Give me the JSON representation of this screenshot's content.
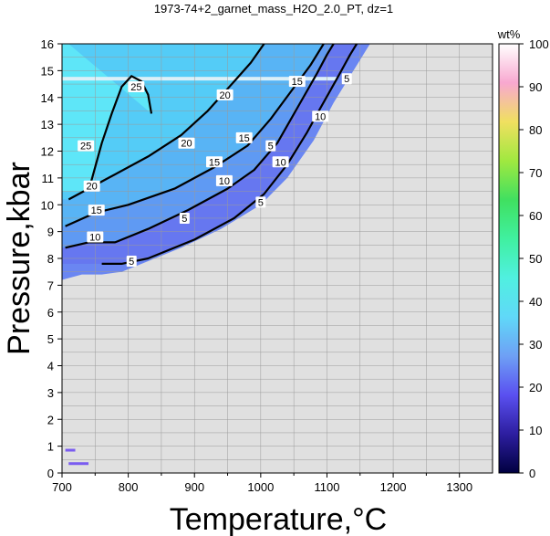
{
  "chart_data": {
    "type": "heatmap",
    "title": "1973-74+2_garnet_mass_H2O_2.0_PT, dz=1",
    "xlabel": "Temperature,°C",
    "ylabel": "Pressure,kbar",
    "xlim": [
      700,
      1350
    ],
    "ylim": [
      0,
      16
    ],
    "xticks": [
      700,
      800,
      900,
      1000,
      1100,
      1200,
      1300
    ],
    "yticks": [
      0,
      1,
      2,
      3,
      4,
      5,
      6,
      7,
      8,
      9,
      10,
      11,
      12,
      13,
      14,
      15,
      16
    ],
    "grid": true,
    "colorbar": {
      "label": "wt%",
      "range": [
        0,
        100
      ],
      "ticks": [
        0,
        10,
        20,
        30,
        40,
        50,
        60,
        70,
        80,
        90,
        100
      ],
      "colors": [
        "#000040",
        "#2d1ea0",
        "#5a50f0",
        "#6ea0f5",
        "#60d8f8",
        "#50f0e0",
        "#40f0a0",
        "#40e060",
        "#a0e840",
        "#f0e060",
        "#f8a8d0",
        "#ffffff"
      ]
    },
    "no_data_color": "#e0e0e0",
    "contours": [
      {
        "level": 5,
        "points": [
          [
            760,
            7.8
          ],
          [
            790,
            7.8
          ],
          [
            830,
            8.0
          ],
          [
            900,
            8.7
          ],
          [
            960,
            9.5
          ],
          [
            1005,
            10.4
          ],
          [
            1040,
            11.5
          ],
          [
            1070,
            12.7
          ],
          [
            1090,
            13.6
          ],
          [
            1115,
            14.7
          ],
          [
            1135,
            15.6
          ],
          [
            1145,
            16.0
          ]
        ]
      },
      {
        "level": 10,
        "points": [
          [
            705,
            8.4
          ],
          [
            740,
            8.6
          ],
          [
            780,
            8.6
          ],
          [
            830,
            9.1
          ],
          [
            890,
            9.8
          ],
          [
            950,
            10.6
          ],
          [
            990,
            11.3
          ],
          [
            1025,
            12.3
          ],
          [
            1055,
            13.6
          ],
          [
            1085,
            14.9
          ],
          [
            1100,
            15.6
          ],
          [
            1110,
            16.0
          ]
        ]
      },
      {
        "level": 15,
        "points": [
          [
            705,
            9.2
          ],
          [
            750,
            9.7
          ],
          [
            800,
            10.0
          ],
          [
            870,
            10.6
          ],
          [
            930,
            11.4
          ],
          [
            980,
            12.2
          ],
          [
            1015,
            13.2
          ],
          [
            1045,
            14.2
          ],
          [
            1075,
            15.2
          ],
          [
            1095,
            16.0
          ]
        ]
      },
      {
        "level": 20,
        "points": [
          [
            710,
            10.2
          ],
          [
            770,
            11.0
          ],
          [
            830,
            11.8
          ],
          [
            880,
            12.6
          ],
          [
            920,
            13.5
          ],
          [
            960,
            14.6
          ],
          [
            985,
            15.3
          ],
          [
            1005,
            16.0
          ]
        ]
      },
      {
        "level": 25,
        "points": [
          [
            740,
            10.5
          ],
          [
            760,
            12.3
          ],
          [
            775,
            13.4
          ],
          [
            790,
            14.4
          ],
          [
            805,
            14.8
          ],
          [
            820,
            14.6
          ],
          [
            830,
            14.1
          ],
          [
            835,
            13.4
          ]
        ]
      }
    ],
    "contour_labels": [
      {
        "text": "5",
        "t": 1000,
        "p": 10.1
      },
      {
        "text": "5",
        "t": 1015,
        "p": 12.2
      },
      {
        "text": "5",
        "t": 1130,
        "p": 14.7
      },
      {
        "text": "5",
        "t": 805,
        "p": 7.9
      },
      {
        "text": "5",
        "t": 885,
        "p": 9.5
      },
      {
        "text": "10",
        "t": 945,
        "p": 10.9
      },
      {
        "text": "10",
        "t": 1030,
        "p": 11.6
      },
      {
        "text": "10",
        "t": 1090,
        "p": 13.3
      },
      {
        "text": "10",
        "t": 750,
        "p": 8.8
      },
      {
        "text": "15",
        "t": 930,
        "p": 11.6
      },
      {
        "text": "15",
        "t": 975,
        "p": 12.5
      },
      {
        "text": "15",
        "t": 1055,
        "p": 14.6
      },
      {
        "text": "15",
        "t": 752,
        "p": 9.8
      },
      {
        "text": "20",
        "t": 745,
        "p": 10.7
      },
      {
        "text": "20",
        "t": 888,
        "p": 12.3
      },
      {
        "text": "20",
        "t": 946,
        "p": 14.1
      },
      {
        "text": "25",
        "t": 736,
        "p": 12.2
      },
      {
        "text": "25",
        "t": 812,
        "p": 14.4
      }
    ],
    "data_region": [
      [
        700,
        7.2
      ],
      [
        730,
        7.4
      ],
      [
        760,
        7.4
      ],
      [
        790,
        7.5
      ],
      [
        830,
        7.9
      ],
      [
        880,
        8.4
      ],
      [
        940,
        9.1
      ],
      [
        1000,
        10.0
      ],
      [
        1040,
        11.0
      ],
      [
        1080,
        12.4
      ],
      [
        1110,
        13.8
      ],
      [
        1140,
        15.0
      ],
      [
        1165,
        16.0
      ],
      [
        700,
        16.0
      ]
    ],
    "low_pressure_spots": [
      {
        "t_from": 705,
        "t_to": 720,
        "p": 0.85
      },
      {
        "t_from": 710,
        "t_to": 740,
        "p": 0.35
      }
    ],
    "gap_band": {
      "p": 14.7
    }
  }
}
